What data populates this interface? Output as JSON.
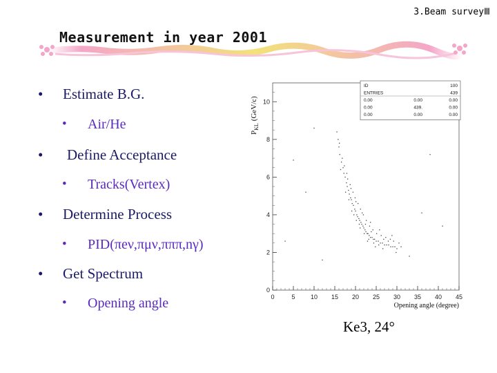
{
  "header": {
    "section": "3.Beam surveyⅢ",
    "title": "Measurement in year 2001"
  },
  "bullets": [
    {
      "level": 1,
      "text": "Estimate B.G."
    },
    {
      "level": 2,
      "text": "Air/He"
    },
    {
      "level": 1,
      "text": "Define Acceptance"
    },
    {
      "level": 2,
      "text": "Tracks(Vertex)"
    },
    {
      "level": 1,
      "text": "Determine Process"
    },
    {
      "level": 2,
      "text": "PID(πeν,πμν,πππ,nγ)"
    },
    {
      "level": 1,
      "text": "Get Spectrum"
    },
    {
      "level": 2,
      "text": "Opening angle"
    }
  ],
  "bullet_symbol": "•",
  "caption": "Ke3, 24°",
  "colors": {
    "level1": "#1a1a66",
    "level2": "#5a2abf",
    "banner_pink": "#f4a6c8",
    "banner_yellow": "#f2e27a"
  },
  "chart_data": {
    "type": "scatter",
    "title": "",
    "xlabel": "Opening angle (degree)",
    "ylabel_main": "P",
    "ylabel_sub": "KL",
    "ylabel_unit": "(GeV/c)",
    "xlim": [
      0,
      45
    ],
    "ylim": [
      0,
      11
    ],
    "xticks": [
      0,
      5,
      10,
      15,
      20,
      25,
      30,
      35,
      40,
      45
    ],
    "yticks": [
      0,
      2,
      4,
      6,
      8,
      10
    ],
    "stats_box": {
      "rows": [
        [
          "ID",
          "",
          "100"
        ],
        [
          "ENTRIES",
          "",
          "439"
        ],
        [
          "0.00",
          "0.00",
          "0.00"
        ],
        [
          "0.00",
          "439.",
          "0.00"
        ],
        [
          "0.00",
          "0.00",
          "0.00"
        ]
      ]
    },
    "points": [
      [
        15.5,
        8.4
      ],
      [
        16,
        7.6
      ],
      [
        16.2,
        7.2
      ],
      [
        16.6,
        6.8
      ],
      [
        17,
        6.5
      ],
      [
        17.2,
        6.2
      ],
      [
        17.5,
        6.0
      ],
      [
        17.8,
        5.7
      ],
      [
        18,
        5.5
      ],
      [
        18.3,
        5.3
      ],
      [
        18.5,
        5.1
      ],
      [
        18.8,
        4.9
      ],
      [
        19,
        4.8
      ],
      [
        19.2,
        4.6
      ],
      [
        19.5,
        4.5
      ],
      [
        19.8,
        4.3
      ],
      [
        20,
        4.2
      ],
      [
        20.3,
        4.0
      ],
      [
        20.5,
        3.9
      ],
      [
        20.8,
        3.8
      ],
      [
        21,
        3.7
      ],
      [
        21.3,
        3.6
      ],
      [
        21.5,
        3.5
      ],
      [
        21.8,
        3.4
      ],
      [
        22,
        3.3
      ],
      [
        22.3,
        3.2
      ],
      [
        22.5,
        3.1
      ],
      [
        22.8,
        3.0
      ],
      [
        23,
        3.0
      ],
      [
        23.3,
        2.9
      ],
      [
        23.6,
        2.8
      ],
      [
        24,
        2.8
      ],
      [
        24.3,
        2.7
      ],
      [
        24.6,
        2.7
      ],
      [
        25,
        2.6
      ],
      [
        25.5,
        2.6
      ],
      [
        26,
        2.5
      ],
      [
        26.5,
        2.5
      ],
      [
        27,
        2.4
      ],
      [
        27.5,
        2.4
      ],
      [
        28,
        2.4
      ],
      [
        28.5,
        2.3
      ],
      [
        29,
        2.3
      ],
      [
        29.5,
        2.3
      ],
      [
        30,
        2.2
      ],
      [
        16.4,
        6.4
      ],
      [
        17.3,
        6.6
      ],
      [
        18.1,
        5.9
      ],
      [
        18.7,
        5.6
      ],
      [
        19.4,
        5.2
      ],
      [
        19.9,
        4.9
      ],
      [
        20.6,
        4.6
      ],
      [
        21.2,
        4.3
      ],
      [
        21.9,
        4.0
      ],
      [
        22.6,
        3.7
      ],
      [
        23.4,
        3.4
      ],
      [
        24.2,
        3.2
      ],
      [
        25.1,
        3.0
      ],
      [
        26.2,
        2.9
      ],
      [
        27.3,
        2.8
      ],
      [
        28.4,
        2.7
      ],
      [
        29.2,
        2.6
      ],
      [
        19.1,
        4.2
      ],
      [
        20.2,
        3.7
      ],
      [
        21.1,
        3.3
      ],
      [
        22.1,
        3.0
      ],
      [
        23.2,
        2.7
      ],
      [
        24.4,
        2.5
      ],
      [
        25.6,
        2.4
      ],
      [
        17.6,
        5.2
      ],
      [
        18.4,
        4.8
      ],
      [
        19.6,
        4.0
      ],
      [
        20.9,
        3.5
      ],
      [
        22.4,
        3.5
      ],
      [
        23.8,
        3.1
      ],
      [
        26.8,
        2.7
      ],
      [
        27.9,
        2.6
      ],
      [
        16.8,
        7.0
      ],
      [
        17.9,
        6.2
      ],
      [
        18.9,
        5.4
      ],
      [
        20.1,
        4.7
      ],
      [
        21.6,
        4.1
      ],
      [
        23.6,
        3.6
      ],
      [
        25.8,
        3.2
      ],
      [
        28.8,
        2.9
      ],
      [
        30.5,
        2.5
      ],
      [
        31,
        2.3
      ],
      [
        15.8,
        8.0
      ],
      [
        16.1,
        7.8
      ],
      [
        22.9,
        2.6
      ],
      [
        24.8,
        2.3
      ],
      [
        26.6,
        2.2
      ],
      [
        29.8,
        2.0
      ],
      [
        3,
        2.6
      ],
      [
        8,
        5.2
      ],
      [
        36,
        4.1
      ],
      [
        5,
        6.9
      ],
      [
        12,
        1.6
      ],
      [
        33,
        1.8
      ],
      [
        41,
        3.4
      ],
      [
        10,
        8.6
      ],
      [
        38,
        7.2
      ]
    ]
  }
}
